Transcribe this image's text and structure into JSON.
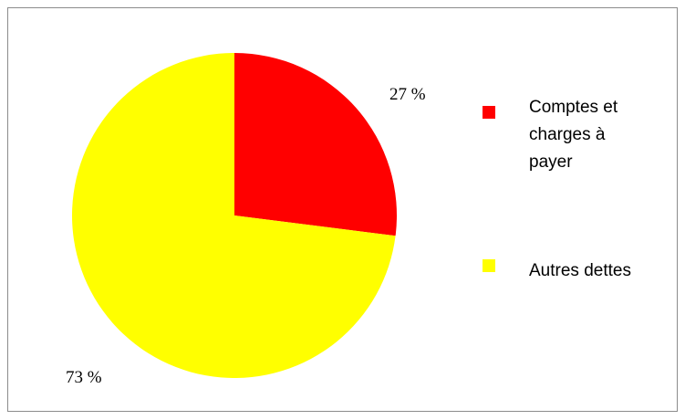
{
  "chart_data": {
    "type": "pie",
    "title": "",
    "slices": [
      {
        "label": "Comptes et charges à payer",
        "value": 27,
        "value_label": "27 %",
        "color": "#ff0000"
      },
      {
        "label": "Autres dettes",
        "value": 73,
        "value_label": "73 %",
        "color": "#ffff00"
      }
    ],
    "legend": {
      "position": "right",
      "items": [
        {
          "label_lines": [
            "Comptes et",
            "charges à",
            "payer"
          ],
          "color": "#ff0000"
        },
        {
          "label_lines": [
            "Autres dettes"
          ],
          "color": "#ffff00"
        }
      ]
    }
  }
}
